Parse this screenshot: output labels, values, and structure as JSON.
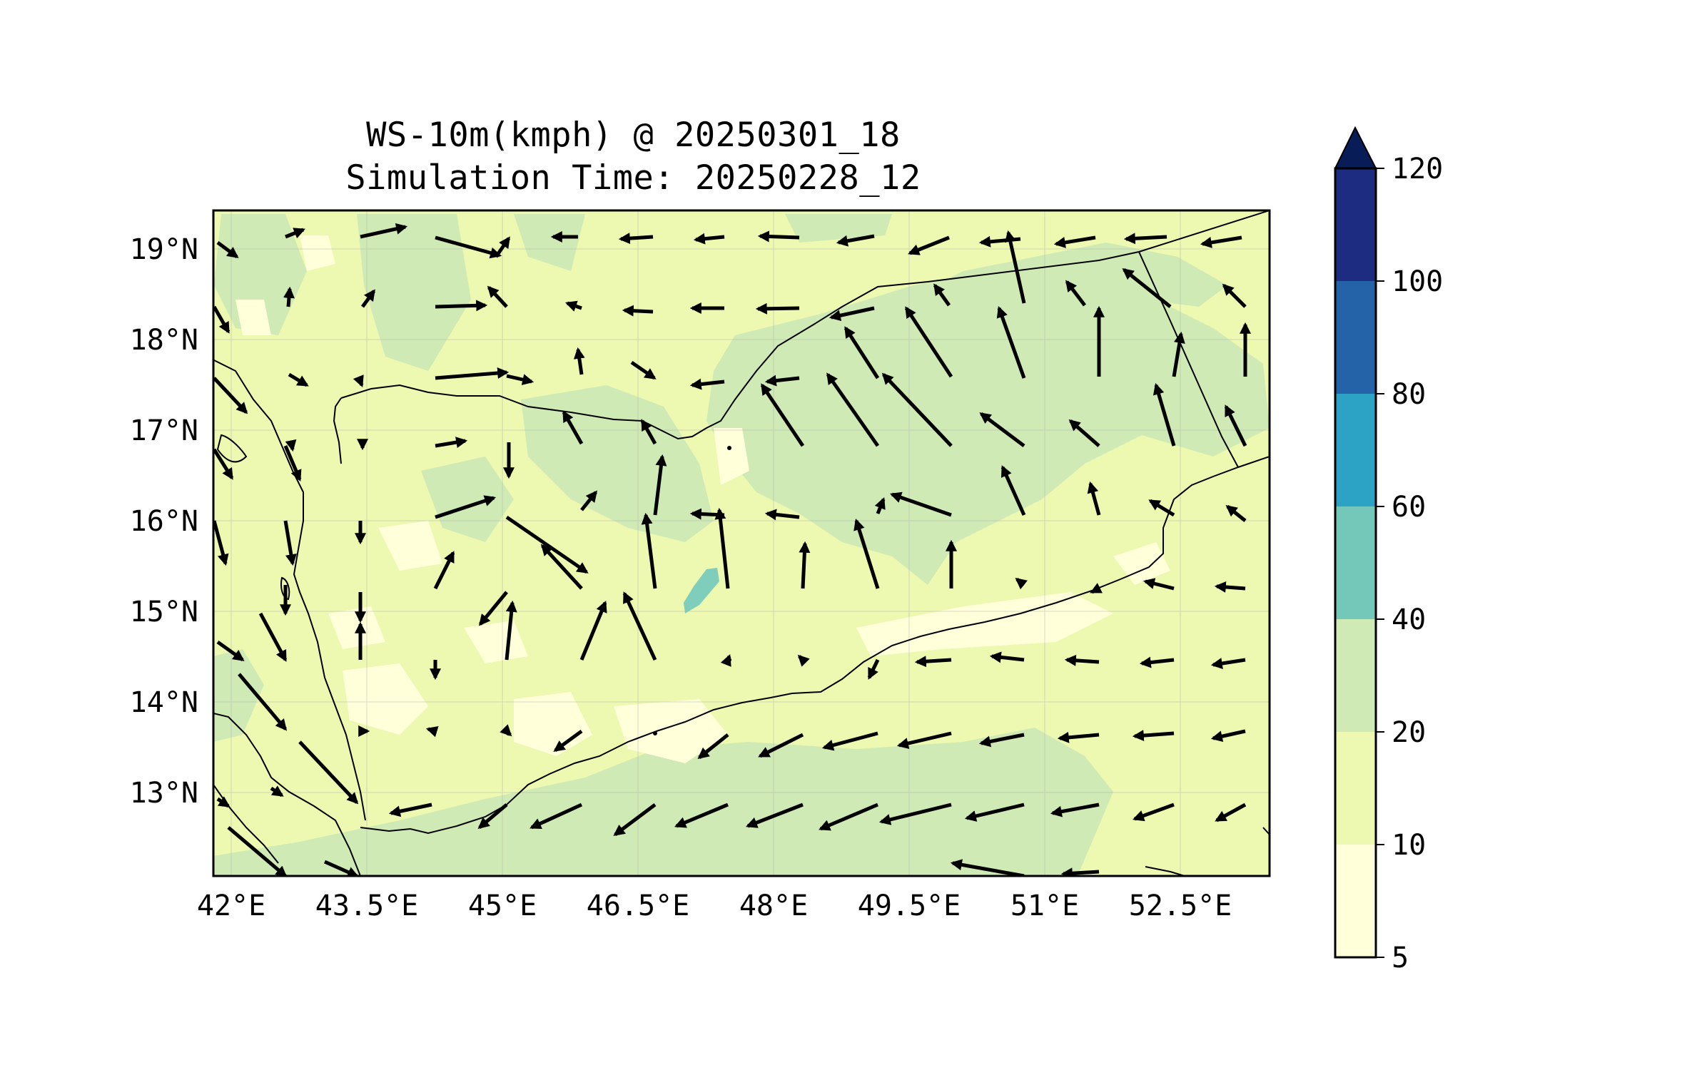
{
  "title": {
    "line1": "WS-10m(kmph) @ 20250301_18",
    "line2": "Simulation Time: 20250228_12"
  },
  "axes": {
    "x_ticks": [
      "42°E",
      "43.5°E",
      "45°E",
      "46.5°E",
      "48°E",
      "49.5°E",
      "51°E",
      "52.5°E"
    ],
    "y_ticks": [
      "19°N",
      "18°N",
      "17°N",
      "16°N",
      "15°N",
      "14°N",
      "13°N"
    ]
  },
  "colorbar": {
    "levels": [
      "5",
      "10",
      "20",
      "40",
      "60",
      "80",
      "100",
      "120"
    ],
    "colors": [
      "#ffffd9",
      "#edf8b1",
      "#c7e9b4",
      "#7fcdbb",
      "#2ca2c4",
      "#2463a8",
      "#1d2c80"
    ],
    "extend_color": "#081d58"
  },
  "map_colors": {
    "base": "#edf8b1",
    "calm": "#ffffd9",
    "moderate": "#cfeab4",
    "strong": "#7fcdbb"
  }
}
